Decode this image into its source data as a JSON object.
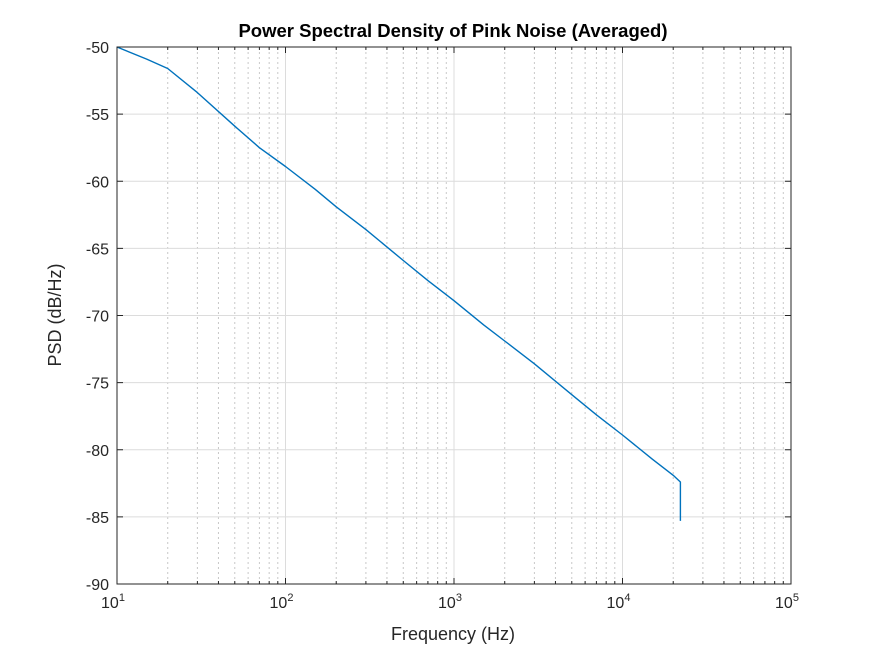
{
  "chart_data": {
    "type": "line",
    "title": "Power Spectral Density of Pink Noise (Averaged)",
    "xlabel": "Frequency (Hz)",
    "ylabel": "PSD (dB/Hz)",
    "xscale": "log",
    "xlim": [
      10,
      100000
    ],
    "ylim": [
      -90,
      -50
    ],
    "grid": true,
    "minor_grid": true,
    "x_ticks": [
      {
        "base": "10",
        "exp": "1",
        "value": 10
      },
      {
        "base": "10",
        "exp": "2",
        "value": 100
      },
      {
        "base": "10",
        "exp": "3",
        "value": 1000
      },
      {
        "base": "10",
        "exp": "4",
        "value": 10000
      },
      {
        "base": "10",
        "exp": "5",
        "value": 100000
      }
    ],
    "y_ticks": [
      -50,
      -55,
      -60,
      -65,
      -70,
      -75,
      -80,
      -85,
      -90
    ],
    "series_color": "#0072bd",
    "series": [
      {
        "x": [
          10,
          15,
          20,
          30,
          50,
          70,
          100,
          150,
          200,
          300,
          500,
          700,
          1000,
          1500,
          2000,
          3000,
          5000,
          7000,
          10000,
          15000,
          20000,
          22050,
          22050
        ],
        "y": [
          -50.0,
          -50.9,
          -51.6,
          -53.4,
          -55.9,
          -57.5,
          -58.9,
          -60.6,
          -61.9,
          -63.6,
          -65.9,
          -67.4,
          -68.9,
          -70.7,
          -71.9,
          -73.6,
          -75.9,
          -77.4,
          -78.9,
          -80.7,
          -81.9,
          -82.4,
          -85.3
        ]
      }
    ]
  }
}
